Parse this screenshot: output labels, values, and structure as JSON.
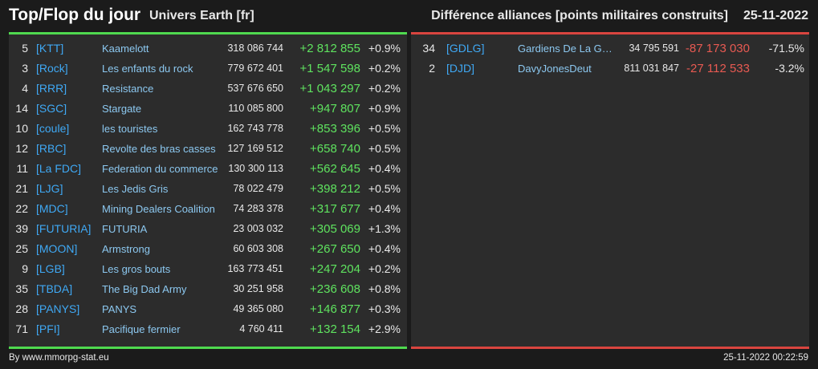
{
  "header": {
    "title": "Top/Flop du jour",
    "universe": "Univers Earth [fr]",
    "subtitle": "Différence alliances [points militaires construits]",
    "date": "25-11-2022"
  },
  "colors": {
    "positive": "#5fe35f",
    "negative": "#e85a52",
    "tag": "#3fa9f5",
    "name": "#8cc8f0"
  },
  "top": [
    {
      "rank": "5",
      "tag": "[KTT]",
      "name": "Kaamelott",
      "points": "318 086 744",
      "diff": "+2 812 855",
      "pct": "+0.9%"
    },
    {
      "rank": "3",
      "tag": "[Rock]",
      "name": "Les enfants du rock",
      "points": "779 672 401",
      "diff": "+1 547 598",
      "pct": "+0.2%"
    },
    {
      "rank": "4",
      "tag": "[RRR]",
      "name": "Resistance",
      "points": "537 676 650",
      "diff": "+1 043 297",
      "pct": "+0.2%"
    },
    {
      "rank": "14",
      "tag": "[SGC]",
      "name": "Stargate",
      "points": "110 085 800",
      "diff": "+947 807",
      "pct": "+0.9%"
    },
    {
      "rank": "10",
      "tag": "[coule]",
      "name": "les touristes",
      "points": "162 743 778",
      "diff": "+853 396",
      "pct": "+0.5%"
    },
    {
      "rank": "12",
      "tag": "[RBC]",
      "name": "Revolte des bras casses",
      "points": "127 169 512",
      "diff": "+658 740",
      "pct": "+0.5%"
    },
    {
      "rank": "11",
      "tag": "[La FDC]",
      "name": "Federation du commerce",
      "points": "130 300 113",
      "diff": "+562 645",
      "pct": "+0.4%"
    },
    {
      "rank": "21",
      "tag": "[LJG]",
      "name": "Les Jedis Gris",
      "points": "78 022 479",
      "diff": "+398 212",
      "pct": "+0.5%"
    },
    {
      "rank": "22",
      "tag": "[MDC]",
      "name": "Mining Dealers Coalition",
      "points": "74 283 378",
      "diff": "+317 677",
      "pct": "+0.4%"
    },
    {
      "rank": "39",
      "tag": "[FUTURIA]",
      "name": "FUTURIA",
      "points": "23 003 032",
      "diff": "+305 069",
      "pct": "+1.3%"
    },
    {
      "rank": "25",
      "tag": "[MOON]",
      "name": "Armstrong",
      "points": "60 603 308",
      "diff": "+267 650",
      "pct": "+0.4%"
    },
    {
      "rank": "9",
      "tag": "[LGB]",
      "name": "Les gros bouts",
      "points": "163 773 451",
      "diff": "+247 204",
      "pct": "+0.2%"
    },
    {
      "rank": "35",
      "tag": "[TBDA]",
      "name": "The Big Dad Army",
      "points": "30 251 958",
      "diff": "+236 608",
      "pct": "+0.8%"
    },
    {
      "rank": "28",
      "tag": "[PANYS]",
      "name": "PANYS",
      "points": "49 365 080",
      "diff": "+146 877",
      "pct": "+0.3%"
    },
    {
      "rank": "71",
      "tag": "[PFI]",
      "name": "Pacifique fermier",
      "points": "4 760 411",
      "diff": "+132 154",
      "pct": "+2.9%"
    }
  ],
  "flop": [
    {
      "rank": "34",
      "tag": "[GDLG]",
      "name": "Gardiens De La Gal...",
      "points": "34 795 591",
      "diff": "-87 173 030",
      "pct": "-71.5%"
    },
    {
      "rank": "2",
      "tag": "[DJD]",
      "name": "DavyJonesDeut",
      "points": "811 031 847",
      "diff": "-27 112 533",
      "pct": "-3.2%"
    }
  ],
  "footer": {
    "source": "By www.mmorpg-stat.eu",
    "timestamp": "25-11-2022 00:22:59"
  }
}
